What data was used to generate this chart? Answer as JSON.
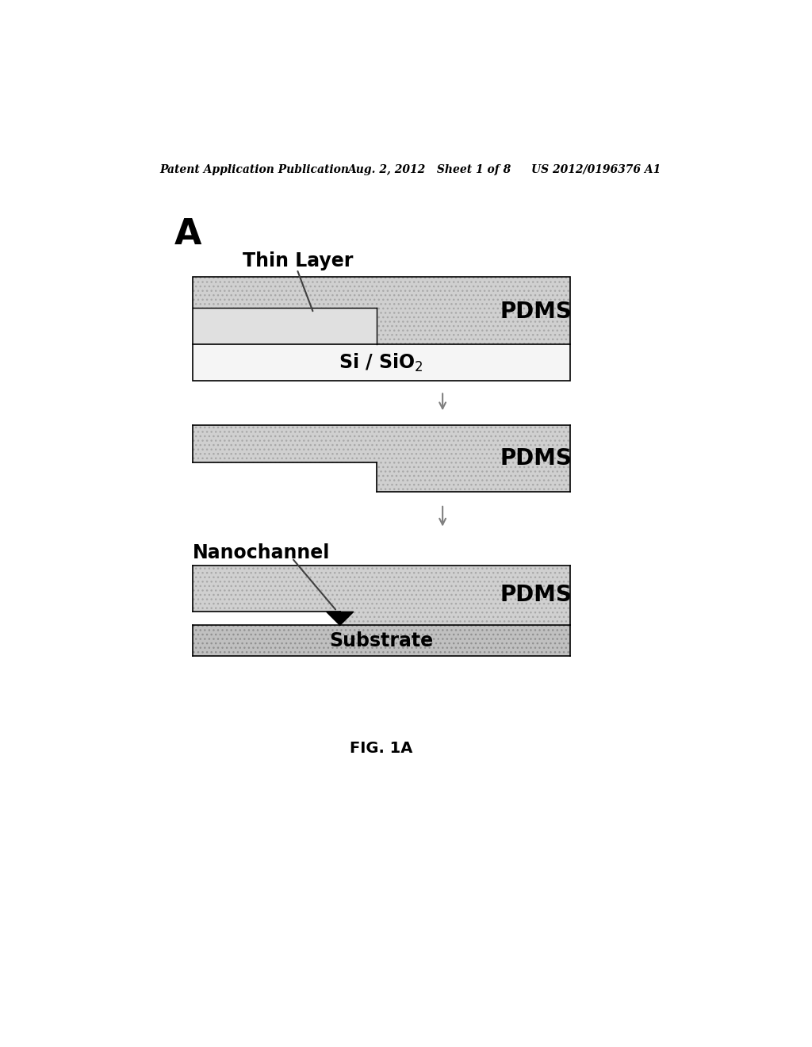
{
  "bg_color": "#ffffff",
  "header_left": "Patent Application Publication",
  "header_mid": "Aug. 2, 2012   Sheet 1 of 8",
  "header_right": "US 2012/0196376 A1",
  "label_A": "A",
  "footer": "FIG. 1A",
  "pdms_color": "#d0d0d0",
  "pdms_light": "#e8e8e8",
  "sio2_color": "#f5f5f5",
  "substrate_color": "#c0c0c0",
  "thin_layer_color": "#e0e0e0",
  "border_color": "#000000",
  "arrow_color": "#808080"
}
